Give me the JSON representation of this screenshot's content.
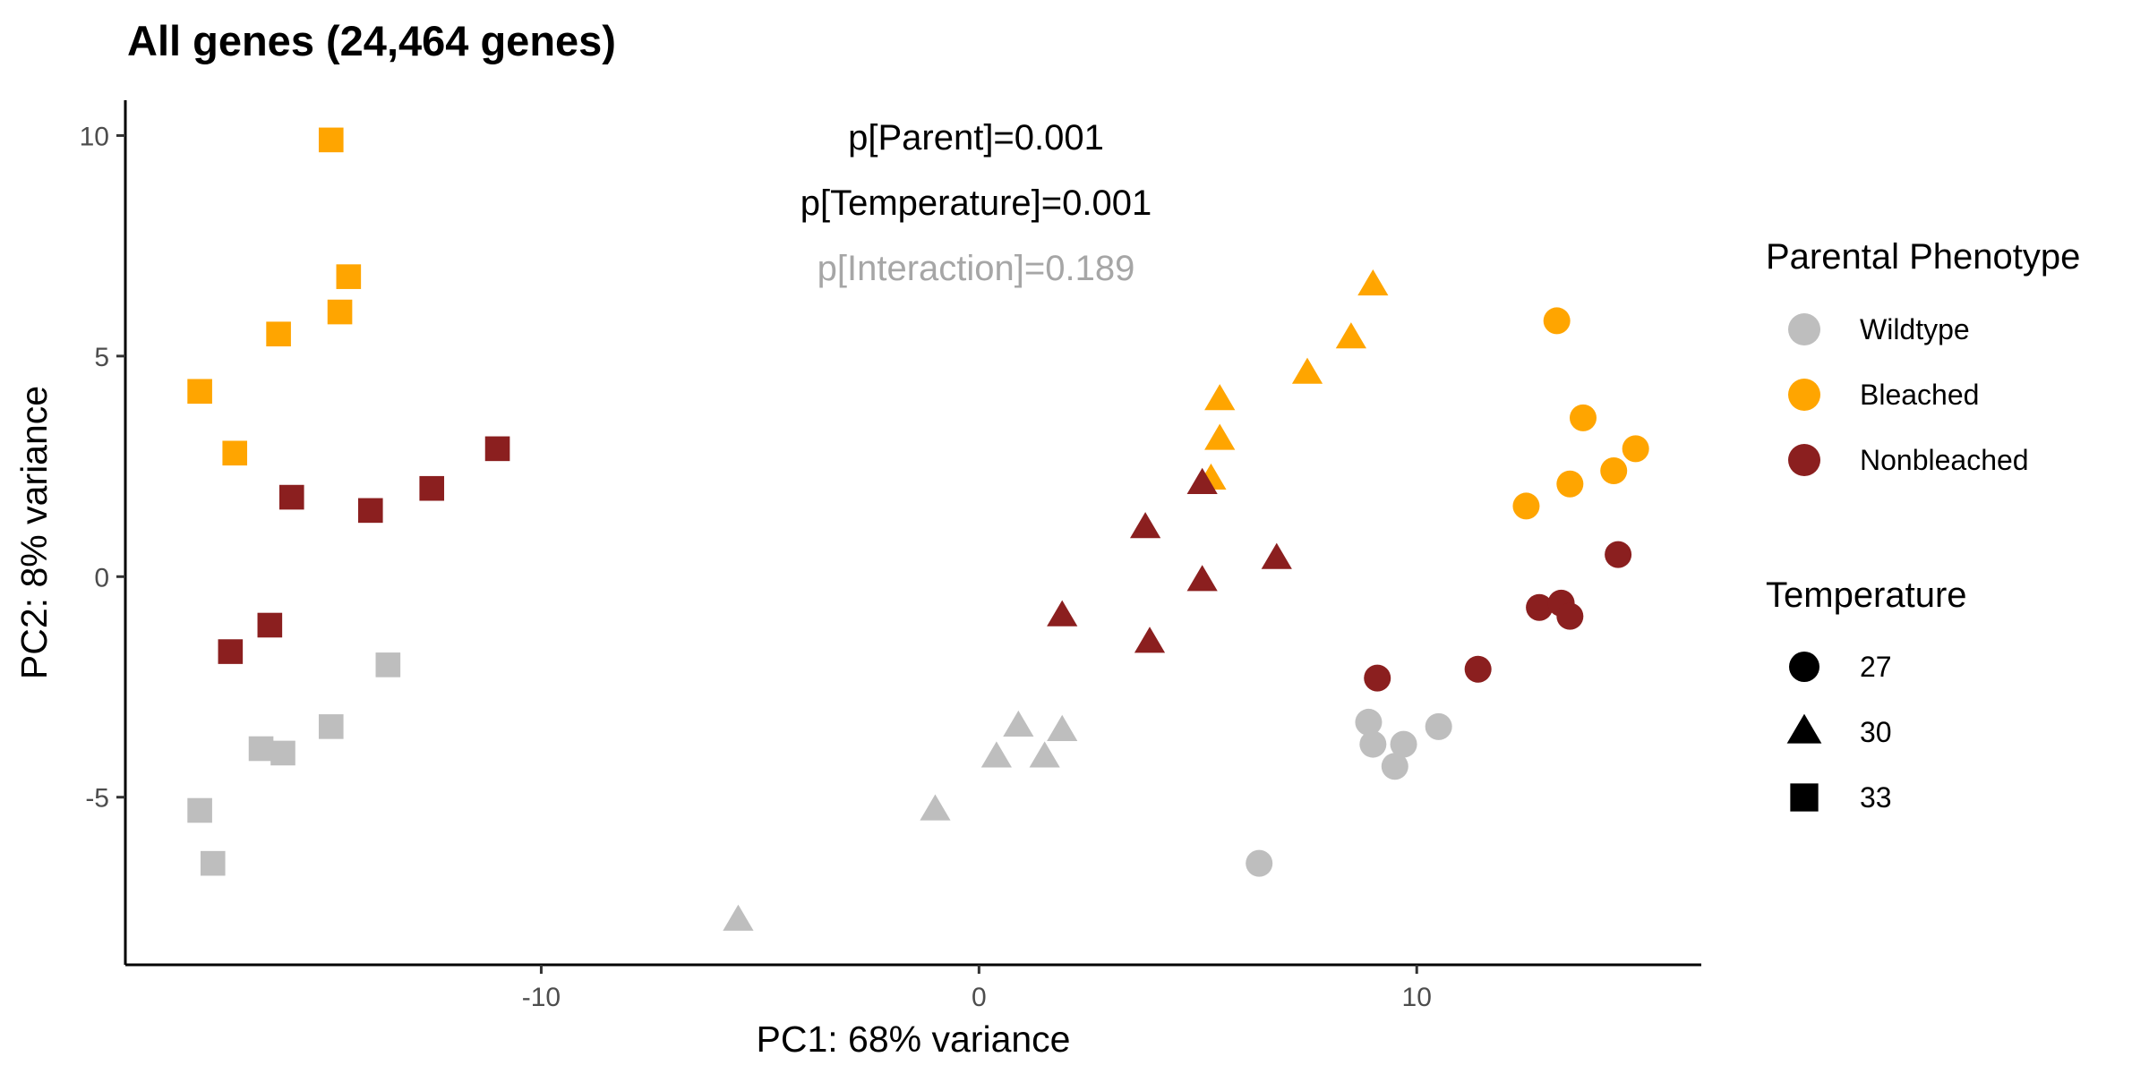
{
  "chart_data": {
    "type": "scatter",
    "title": "All genes (24,464 genes)",
    "xlabel": "PC1: 68% variance",
    "ylabel": "PC2: 8% variance",
    "xlim": [
      -19.5,
      16.5
    ],
    "ylim": [
      -8.8,
      10.8
    ],
    "xticks": [
      -10,
      0,
      10
    ],
    "yticks": [
      -5,
      0,
      5,
      10
    ],
    "annotations": [
      {
        "text": "p[Parent]=0.001",
        "color": "#000000"
      },
      {
        "text": "p[Temperature]=0.001",
        "color": "#000000"
      },
      {
        "text": "p[Interaction]=0.189",
        "color": "#a6a6a6"
      }
    ],
    "legend": {
      "position": "right",
      "color": {
        "title": "Parental Phenotype",
        "entries": [
          {
            "label": "Wildtype",
            "color": "#bebebe"
          },
          {
            "label": "Bleached",
            "color": "#ffa500"
          },
          {
            "label": "Nonbleached",
            "color": "#8b1f1f"
          }
        ]
      },
      "shape": {
        "title": "Temperature",
        "entries": [
          {
            "label": "27",
            "shape": "circle"
          },
          {
            "label": "30",
            "shape": "triangle"
          },
          {
            "label": "33",
            "shape": "square"
          }
        ]
      }
    },
    "points": [
      {
        "x": -14.8,
        "y": 9.9,
        "phenotype": "Bleached",
        "temperature": "33"
      },
      {
        "x": -14.4,
        "y": 6.8,
        "phenotype": "Bleached",
        "temperature": "33"
      },
      {
        "x": -14.6,
        "y": 6.0,
        "phenotype": "Bleached",
        "temperature": "33"
      },
      {
        "x": -16.0,
        "y": 5.5,
        "phenotype": "Bleached",
        "temperature": "33"
      },
      {
        "x": -17.8,
        "y": 4.2,
        "phenotype": "Bleached",
        "temperature": "33"
      },
      {
        "x": -17.0,
        "y": 2.8,
        "phenotype": "Bleached",
        "temperature": "33"
      },
      {
        "x": -11.0,
        "y": 2.9,
        "phenotype": "Nonbleached",
        "temperature": "33"
      },
      {
        "x": -12.5,
        "y": 2.0,
        "phenotype": "Nonbleached",
        "temperature": "33"
      },
      {
        "x": -15.7,
        "y": 1.8,
        "phenotype": "Nonbleached",
        "temperature": "33"
      },
      {
        "x": -13.9,
        "y": 1.5,
        "phenotype": "Nonbleached",
        "temperature": "33"
      },
      {
        "x": -16.2,
        "y": -1.1,
        "phenotype": "Nonbleached",
        "temperature": "33"
      },
      {
        "x": -17.1,
        "y": -1.7,
        "phenotype": "Nonbleached",
        "temperature": "33"
      },
      {
        "x": -13.5,
        "y": -2.0,
        "phenotype": "Wildtype",
        "temperature": "33"
      },
      {
        "x": -14.8,
        "y": -3.4,
        "phenotype": "Wildtype",
        "temperature": "33"
      },
      {
        "x": -16.4,
        "y": -3.9,
        "phenotype": "Wildtype",
        "temperature": "33"
      },
      {
        "x": -15.9,
        "y": -4.0,
        "phenotype": "Wildtype",
        "temperature": "33"
      },
      {
        "x": -17.8,
        "y": -5.3,
        "phenotype": "Wildtype",
        "temperature": "33"
      },
      {
        "x": -17.5,
        "y": -6.5,
        "phenotype": "Wildtype",
        "temperature": "33"
      },
      {
        "x": 9.0,
        "y": 6.6,
        "phenotype": "Bleached",
        "temperature": "30"
      },
      {
        "x": 8.5,
        "y": 5.4,
        "phenotype": "Bleached",
        "temperature": "30"
      },
      {
        "x": 7.5,
        "y": 4.6,
        "phenotype": "Bleached",
        "temperature": "30"
      },
      {
        "x": 5.5,
        "y": 4.0,
        "phenotype": "Bleached",
        "temperature": "30"
      },
      {
        "x": 5.5,
        "y": 3.1,
        "phenotype": "Bleached",
        "temperature": "30"
      },
      {
        "x": 5.3,
        "y": 2.2,
        "phenotype": "Bleached",
        "temperature": "30"
      },
      {
        "x": 5.1,
        "y": 2.1,
        "phenotype": "Nonbleached",
        "temperature": "30"
      },
      {
        "x": 3.8,
        "y": 1.1,
        "phenotype": "Nonbleached",
        "temperature": "30"
      },
      {
        "x": 6.8,
        "y": 0.4,
        "phenotype": "Nonbleached",
        "temperature": "30"
      },
      {
        "x": 5.1,
        "y": -0.1,
        "phenotype": "Nonbleached",
        "temperature": "30"
      },
      {
        "x": 1.9,
        "y": -0.9,
        "phenotype": "Nonbleached",
        "temperature": "30"
      },
      {
        "x": 3.9,
        "y": -1.5,
        "phenotype": "Nonbleached",
        "temperature": "30"
      },
      {
        "x": 0.9,
        "y": -3.4,
        "phenotype": "Wildtype",
        "temperature": "30"
      },
      {
        "x": 1.9,
        "y": -3.5,
        "phenotype": "Wildtype",
        "temperature": "30"
      },
      {
        "x": 0.4,
        "y": -4.1,
        "phenotype": "Wildtype",
        "temperature": "30"
      },
      {
        "x": 1.5,
        "y": -4.1,
        "phenotype": "Wildtype",
        "temperature": "30"
      },
      {
        "x": -1.0,
        "y": -5.3,
        "phenotype": "Wildtype",
        "temperature": "30"
      },
      {
        "x": -5.5,
        "y": -7.8,
        "phenotype": "Wildtype",
        "temperature": "30"
      },
      {
        "x": 13.2,
        "y": 5.8,
        "phenotype": "Bleached",
        "temperature": "27"
      },
      {
        "x": 13.8,
        "y": 3.6,
        "phenotype": "Bleached",
        "temperature": "27"
      },
      {
        "x": 15.0,
        "y": 2.9,
        "phenotype": "Bleached",
        "temperature": "27"
      },
      {
        "x": 14.5,
        "y": 2.4,
        "phenotype": "Bleached",
        "temperature": "27"
      },
      {
        "x": 13.5,
        "y": 2.1,
        "phenotype": "Bleached",
        "temperature": "27"
      },
      {
        "x": 12.5,
        "y": 1.6,
        "phenotype": "Bleached",
        "temperature": "27"
      },
      {
        "x": 14.6,
        "y": 0.5,
        "phenotype": "Nonbleached",
        "temperature": "27"
      },
      {
        "x": 12.8,
        "y": -0.7,
        "phenotype": "Nonbleached",
        "temperature": "27"
      },
      {
        "x": 13.3,
        "y": -0.6,
        "phenotype": "Nonbleached",
        "temperature": "27"
      },
      {
        "x": 13.5,
        "y": -0.9,
        "phenotype": "Nonbleached",
        "temperature": "27"
      },
      {
        "x": 11.4,
        "y": -2.1,
        "phenotype": "Nonbleached",
        "temperature": "27"
      },
      {
        "x": 9.1,
        "y": -2.3,
        "phenotype": "Nonbleached",
        "temperature": "27"
      },
      {
        "x": 8.9,
        "y": -3.3,
        "phenotype": "Wildtype",
        "temperature": "27"
      },
      {
        "x": 10.5,
        "y": -3.4,
        "phenotype": "Wildtype",
        "temperature": "27"
      },
      {
        "x": 9.0,
        "y": -3.8,
        "phenotype": "Wildtype",
        "temperature": "27"
      },
      {
        "x": 9.7,
        "y": -3.8,
        "phenotype": "Wildtype",
        "temperature": "27"
      },
      {
        "x": 9.5,
        "y": -4.3,
        "phenotype": "Wildtype",
        "temperature": "27"
      },
      {
        "x": 6.4,
        "y": -6.5,
        "phenotype": "Wildtype",
        "temperature": "27"
      }
    ]
  }
}
